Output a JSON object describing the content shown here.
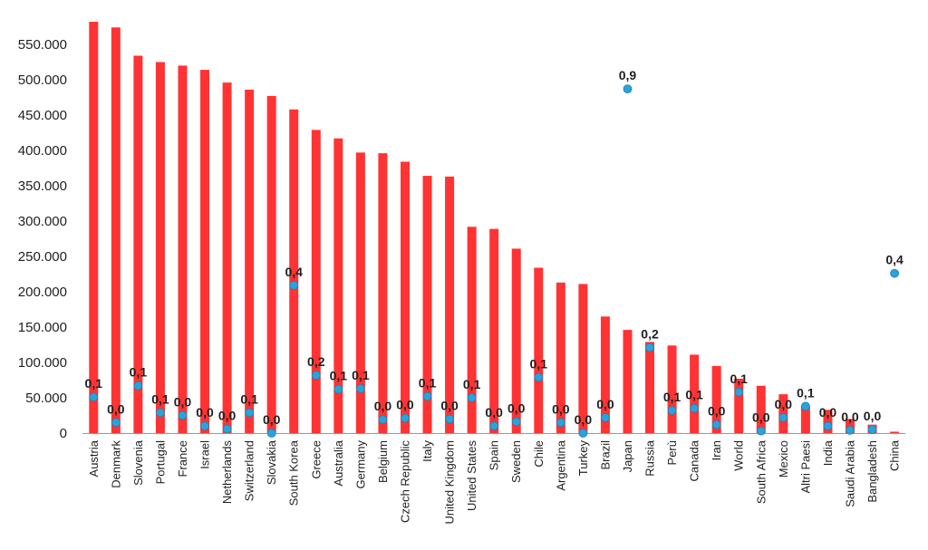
{
  "chart_data": {
    "type": "bar",
    "title": "",
    "xlabel": "",
    "ylabel": "",
    "ylim": [
      0,
      580000
    ],
    "yticks": [
      0,
      50000,
      100000,
      150000,
      200000,
      250000,
      300000,
      350000,
      400000,
      450000,
      500000,
      550000
    ],
    "ytick_labels": [
      "0",
      "50.000",
      "100.000",
      "150.000",
      "200.000",
      "250.000",
      "300.000",
      "350.000",
      "400.000",
      "450.000",
      "500.000",
      "550.000"
    ],
    "grid": false,
    "legend": "none",
    "colors": {
      "bars": "#ff3333",
      "points": "#29a3dc"
    },
    "categories": [
      "Austria",
      "Denmark",
      "Slovenia",
      "Portugal",
      "France",
      "Israel",
      "Netherlands",
      "Switzerland",
      "Slovakia",
      "South Korea",
      "Greece",
      "Australia",
      "Germany",
      "Belgium",
      "Czech Republic",
      "Italy",
      "United Kingdom",
      "United States",
      "Spain",
      "Sweden",
      "Chile",
      "Argentina",
      "Turkey",
      "Brazil",
      "Japan",
      "Russia",
      "Perù",
      "Canada",
      "Iran",
      "World",
      "South Africa",
      "Mexico",
      "Altri Paesi",
      "India",
      "Saudi Arabia",
      "Bangladesh",
      "China"
    ],
    "series": [
      {
        "type": "bar",
        "values": [
          582000,
          574000,
          534000,
          525000,
          520000,
          514000,
          496000,
          486000,
          477000,
          458000,
          429000,
          417000,
          397000,
          396000,
          384000,
          364000,
          363000,
          292000,
          289000,
          261000,
          234000,
          213000,
          211000,
          165000,
          146000,
          129000,
          124000,
          111000,
          95000,
          77000,
          67000,
          55000,
          39000,
          33000,
          20000,
          12000,
          2000
        ]
      },
      {
        "type": "scatter",
        "values": [
          51000,
          15000,
          67000,
          29000,
          25000,
          10000,
          6000,
          29000,
          0,
          209000,
          82000,
          62000,
          63000,
          19000,
          21000,
          52000,
          20000,
          50000,
          10000,
          16000,
          79000,
          15000,
          0,
          22000,
          487000,
          121000,
          32000,
          35000,
          12000,
          58000,
          3000,
          22000,
          38000,
          10000,
          4000,
          5000,
          226000
        ],
        "labels": [
          "0,1",
          "0,0",
          "0,1",
          "0,1",
          "0,0",
          "0,0",
          "0,0",
          "0,1",
          "0,0",
          "0,4",
          "0,2",
          "0,1",
          "0,1",
          "0,0",
          "0,0",
          "0,1",
          "0,0",
          "0,1",
          "0,0",
          "0,0",
          "0,1",
          "0,0",
          "0,0",
          "0,0",
          "0,9",
          "0,2",
          "0,1",
          "0,1",
          "0,0",
          "0,1",
          "0,0",
          "0,0",
          "0,1",
          "0,0",
          "0,0",
          "0,0",
          "0,4"
        ]
      }
    ]
  }
}
